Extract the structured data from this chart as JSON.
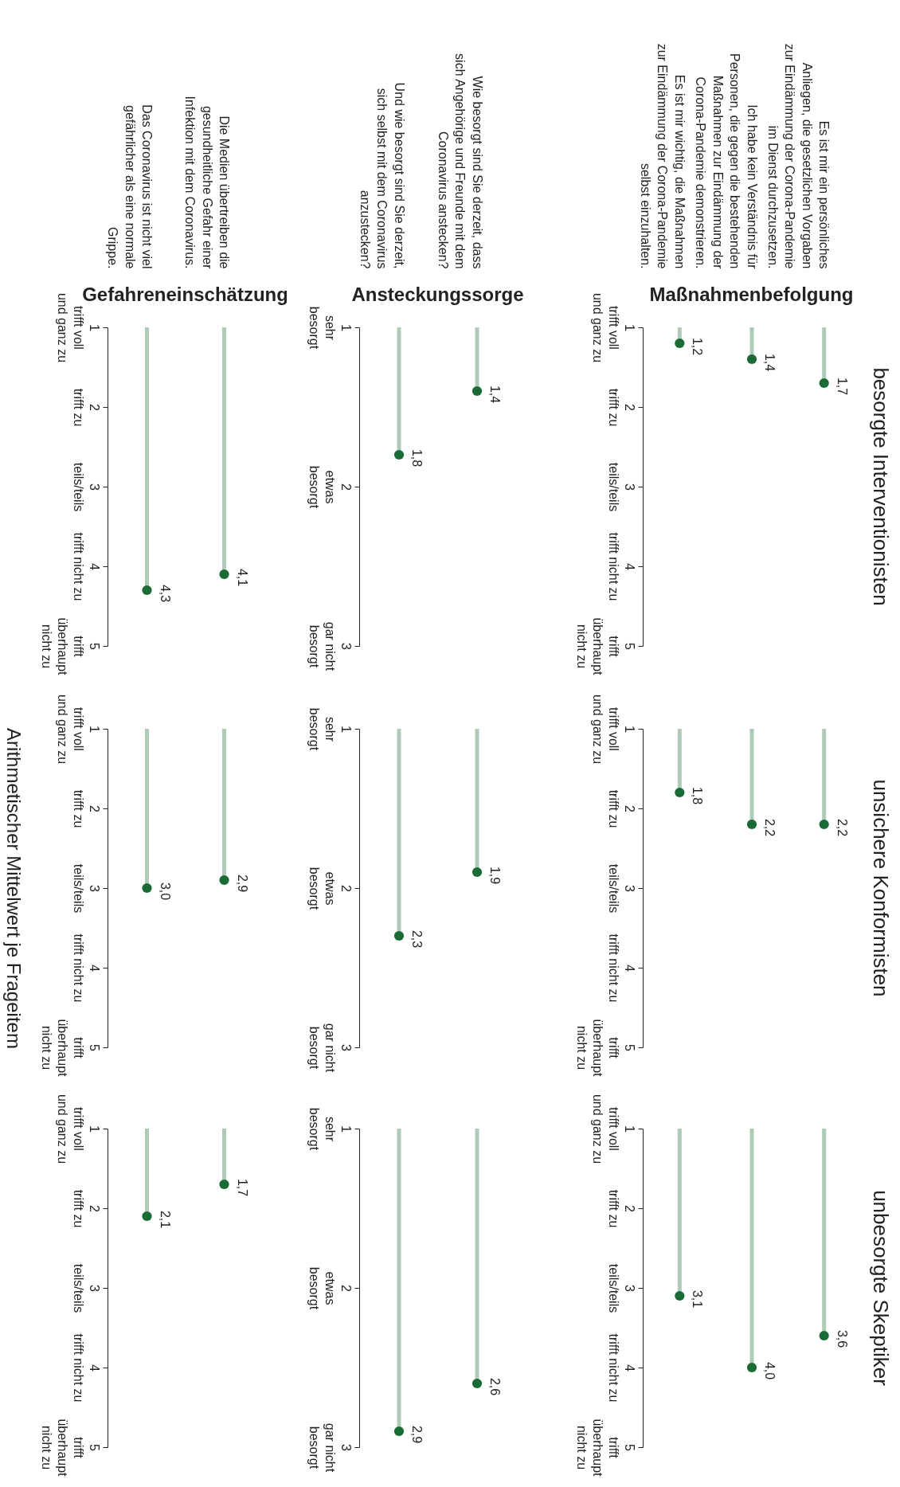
{
  "chart_data": [
    {
      "type": "lollipop",
      "xlabel": "Gefahreneinschätzung",
      "categories": [
        "Das Coronavirus ist nicht viel\ngefährlicher als eine normale\nGrippe.",
        "Die Medien übertreiben die\ngesundheitliche Gefahr einer\nInfektion mit dem Coronavirus."
      ],
      "values": [
        4.3,
        4.1
      ],
      "value_labels": [
        "4,3",
        "4,1"
      ],
      "color": "#1a6b35",
      "marker": "circle",
      "ylim": [
        5,
        1
      ],
      "yticks": [
        {
          "value": 1,
          "label": "1\ntrifft voll\nund ganz zu"
        },
        {
          "value": 2,
          "label": "2\ntrifft zu"
        },
        {
          "value": 3,
          "label": "3\nteils/teils"
        },
        {
          "value": 4,
          "label": "4\ntrifft nicht zu"
        },
        {
          "value": 5,
          "label": "5\ntrifft\nüberhaupt\nnicht zu"
        }
      ]
    },
    {
      "type": "lollipop",
      "xlabel": "Ansteckungssorge",
      "categories": [
        "Und wie besorgt sind Sie derzeit,\nsich selbst mit dem Coronavirus\nanzustecken?",
        "Wie besorgt sind Sie derzeit, dass\nsich Angehörige und Freunde mit dem\nCoronavirus anstecken?"
      ],
      "values": [
        1.8,
        1.4
      ],
      "value_labels": [
        "1,8",
        "1,4"
      ],
      "color": "#1a6b35",
      "marker": "circle",
      "ylim": [
        3,
        1
      ],
      "yticks": [
        {
          "value": 1,
          "label": "1\nsehr\nbesorgt"
        },
        {
          "value": 2,
          "label": "2\netwas\nbesorgt"
        },
        {
          "value": 3,
          "label": "3\ngar nicht\nbesorgt"
        }
      ]
    },
    {
      "type": "lollipop",
      "annotations": [
        "besorgte Interventionisten"
      ],
      "xlabel": "Maßnahmenbefolgung",
      "categories": [
        "Es ist mir wichtig, die Maßnahmen\nzur Eindämmung der Corona-Pandemie\nselbst einzuhalten.",
        "Ich habe kein Verständnis für\nPersonen, die gegen die bestehenden\nMaßnahmen zur Eindämmung der\nCorona-Pandemie demonstrieren.",
        "Es ist mir ein persönliches\nAnliegen, die gesetzlichen Vorgaben\nzur Eindämmung der Corona-Pandemie\nim Dienst durchzusetzen."
      ],
      "values": [
        1.2,
        1.4,
        1.7
      ],
      "value_labels": [
        "1,2",
        "1,4",
        "1,7"
      ],
      "color": "#1a6b35",
      "marker": "circle",
      "ylim": [
        5,
        1
      ],
      "yticks": [
        {
          "value": 1,
          "label": "1\ntrifft voll\nund ganz zu"
        },
        {
          "value": 2,
          "label": "2\ntrifft zu"
        },
        {
          "value": 3,
          "label": "3\nteils/teils"
        },
        {
          "value": 4,
          "label": "4\ntrifft nicht zu"
        },
        {
          "value": 5,
          "label": "5\ntrifft\nüberhaupt\nnicht zu"
        }
      ]
    },
    {
      "type": "lollipop",
      "ylabel": "Arithmetischer Mittelwert je Frageitem",
      "tick_labels": "y",
      "categories": [
        null,
        null
      ],
      "values": [
        3.0,
        2.9
      ],
      "value_labels": [
        "3,0",
        "2,9"
      ],
      "color": "#1a6b35",
      "marker": "circle",
      "ylim": [
        5,
        1
      ],
      "yticks": [
        {
          "value": 1,
          "label": "1\ntrifft voll\nund ganz zu"
        },
        {
          "value": 2,
          "label": "2\ntrifft zu"
        },
        {
          "value": 3,
          "label": "3\nteils/teils"
        },
        {
          "value": 4,
          "label": "4\ntrifft nicht zu"
        },
        {
          "value": 5,
          "label": "5\ntrifft\nüberhaupt\nnicht zu"
        }
      ]
    },
    {
      "type": "lollipop",
      "tick_labels": "y",
      "categories": [
        null,
        null
      ],
      "values": [
        2.3,
        1.9
      ],
      "value_labels": [
        "2,3",
        "1,9"
      ],
      "color": "#1a6b35",
      "marker": "circle",
      "ylim": [
        3,
        1
      ],
      "yticks": [
        {
          "value": 1,
          "label": "1\nsehr\nbesorgt"
        },
        {
          "value": 2,
          "label": "2\netwas\nbesorgt"
        },
        {
          "value": 3,
          "label": "3\ngar nicht\nbesorgt"
        }
      ]
    },
    {
      "type": "lollipop",
      "annotations": [
        "unsichere Konformisten"
      ],
      "tick_labels": "y",
      "categories": [
        null,
        null,
        null
      ],
      "values": [
        1.8,
        2.2,
        2.2
      ],
      "value_labels": [
        "1,8",
        "2,2",
        "2,2"
      ],
      "color": "#1a6b35",
      "marker": "circle",
      "ylim": [
        5,
        1
      ],
      "yticks": [
        {
          "value": 1,
          "label": "1\ntrifft voll\nund ganz zu"
        },
        {
          "value": 2,
          "label": "2\ntrifft zu"
        },
        {
          "value": 3,
          "label": "3\nteils/teils"
        },
        {
          "value": 4,
          "label": "4\ntrifft nicht zu"
        },
        {
          "value": 5,
          "label": "5\ntrifft\nüberhaupt\nnicht zu"
        }
      ]
    },
    {
      "type": "lollipop",
      "tick_labels": "y",
      "categories": [
        null,
        null
      ],
      "values": [
        2.1,
        1.7
      ],
      "value_labels": [
        "2,1",
        "1,7"
      ],
      "color": "#1a6b35",
      "marker": "circle",
      "ylim": [
        5,
        1
      ],
      "yticks": [
        {
          "value": 1,
          "label": "1\ntrifft voll\nund ganz zu"
        },
        {
          "value": 2,
          "label": "2\ntrifft zu"
        },
        {
          "value": 3,
          "label": "3\nteils/teils"
        },
        {
          "value": 4,
          "label": "4\ntrifft nicht zu"
        },
        {
          "value": 5,
          "label": "5\ntrifft\nüberhaupt\nnicht zu"
        }
      ]
    },
    {
      "type": "lollipop",
      "tick_labels": "y",
      "categories": [
        null,
        null
      ],
      "values": [
        2.9,
        2.6
      ],
      "value_labels": [
        "2,9",
        "2,6"
      ],
      "color": "#1a6b35",
      "marker": "circle",
      "ylim": [
        3,
        1
      ],
      "yticks": [
        {
          "value": 1,
          "label": "1\nsehr\nbesorgt"
        },
        {
          "value": 2,
          "label": "2\netwas\nbesorgt"
        },
        {
          "value": 3,
          "label": "3\ngar nicht\nbesorgt"
        }
      ]
    },
    {
      "type": "lollipop",
      "annotations": [
        "unbesorgte Skeptiker"
      ],
      "tick_labels": "y",
      "categories": [
        null,
        null,
        null
      ],
      "values": [
        3.1,
        4.0,
        3.6
      ],
      "value_labels": [
        "3,1",
        "4,0",
        "3,6"
      ],
      "color": "#1a6b35",
      "marker": "circle",
      "ylim": [
        5,
        1
      ],
      "yticks": [
        {
          "value": 1,
          "label": "1\ntrifft voll\nund ganz zu"
        },
        {
          "value": 2,
          "label": "2\ntrifft zu"
        },
        {
          "value": 3,
          "label": "3\nteils/teils"
        },
        {
          "value": 4,
          "label": "4\ntrifft nicht zu"
        },
        {
          "value": 5,
          "label": "5\ntrifft\nüberhaupt\nnicht zu"
        }
      ]
    }
  ]
}
